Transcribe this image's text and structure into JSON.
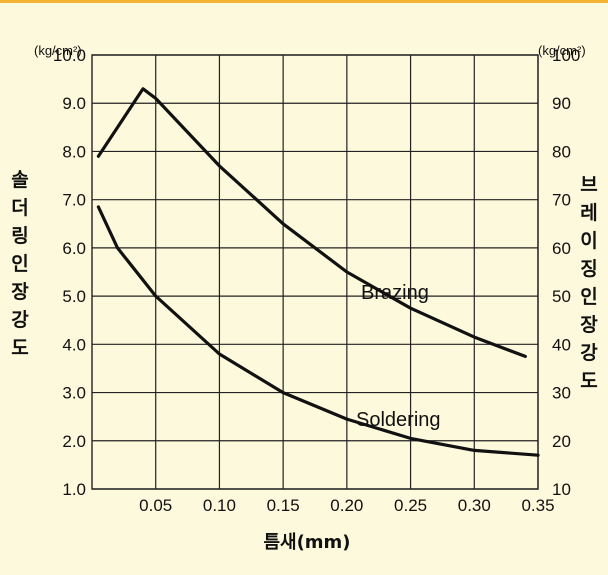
{
  "chart_data": {
    "type": "line",
    "xlabel": "틈새(mm)",
    "ylabel_left": "솔더링인장강도",
    "ylabel_right": "브레이징인장강도",
    "unit_left": "(kg/cm²)",
    "unit_right": "(kg/cm²)",
    "x_ticks": [
      "0.05",
      "0.10",
      "0.15",
      "0.20",
      "0.25",
      "0.30",
      "0.35"
    ],
    "x_tick_values": [
      0.05,
      0.1,
      0.15,
      0.2,
      0.25,
      0.3,
      0.35
    ],
    "y_left_ticks": [
      "1.0",
      "2.0",
      "3.0",
      "4.0",
      "5.0",
      "6.0",
      "7.0",
      "8.0",
      "9.0",
      "10.0"
    ],
    "y_left_tick_values": [
      1,
      2,
      3,
      4,
      5,
      6,
      7,
      8,
      9,
      10
    ],
    "y_right_ticks": [
      "10",
      "20",
      "30",
      "40",
      "50",
      "60",
      "70",
      "80",
      "90",
      "100"
    ],
    "xlim": [
      0,
      0.35
    ],
    "ylim_left": [
      1,
      10
    ],
    "ylim_right": [
      10,
      100
    ],
    "grid": true,
    "series": [
      {
        "name": "Brazing",
        "axis": "right",
        "x": [
          0.005,
          0.04,
          0.05,
          0.1,
          0.15,
          0.2,
          0.25,
          0.3,
          0.34
        ],
        "values": [
          79,
          93,
          91,
          77,
          65,
          55,
          47.5,
          41.5,
          37.5
        ]
      },
      {
        "name": "Soldering",
        "axis": "left",
        "x": [
          0.005,
          0.02,
          0.05,
          0.1,
          0.15,
          0.2,
          0.25,
          0.3,
          0.35
        ],
        "values": [
          6.85,
          6.0,
          5.0,
          3.8,
          3.0,
          2.45,
          2.05,
          1.8,
          1.7
        ]
      }
    ]
  }
}
